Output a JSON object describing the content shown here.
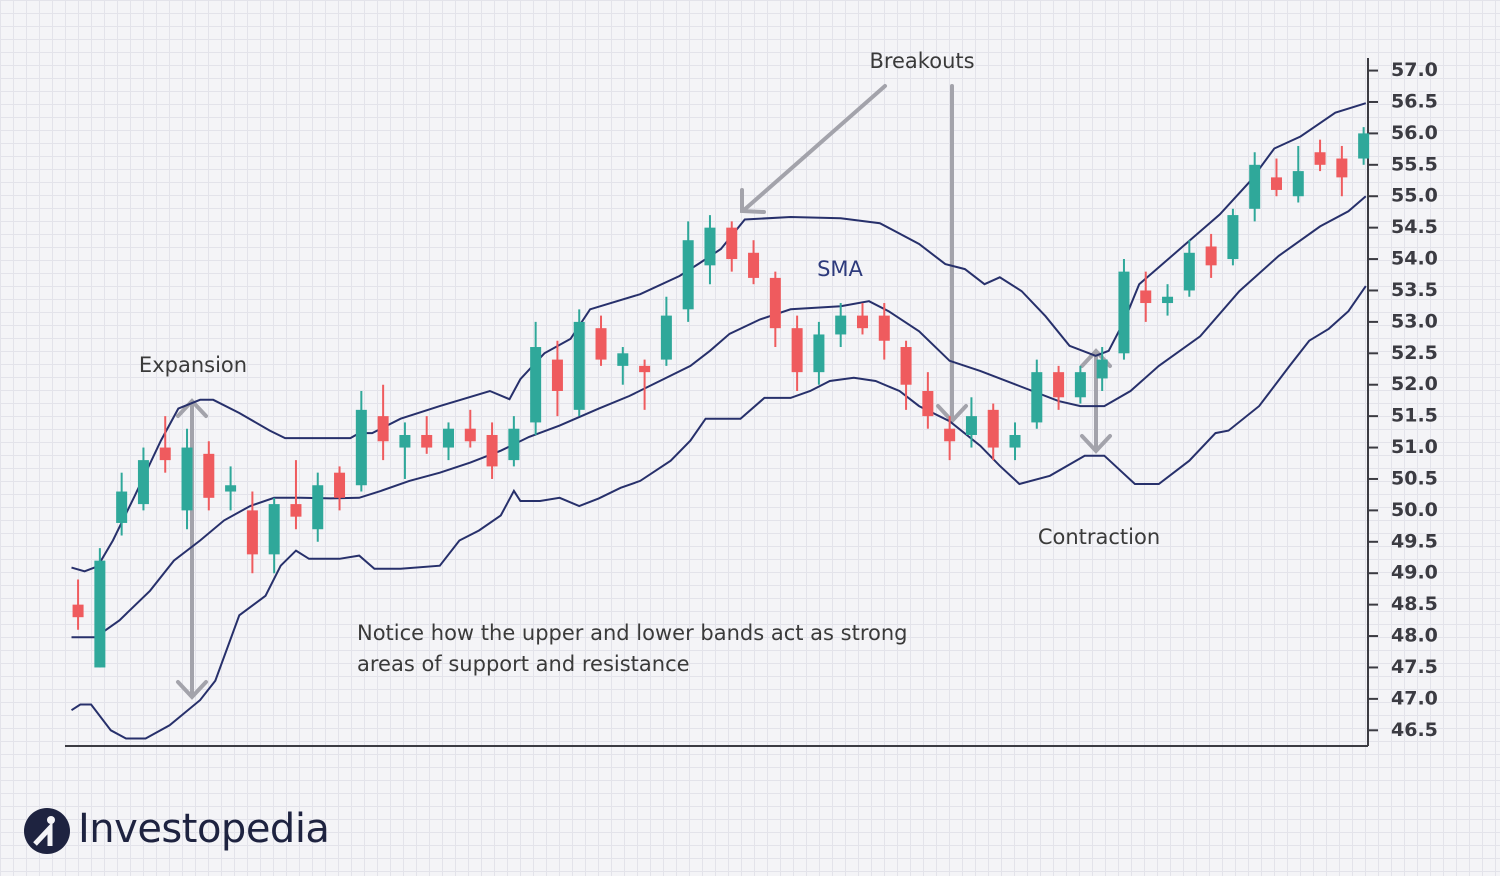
{
  "chart_data": {
    "type": "candlestick",
    "x": [
      0,
      1,
      2,
      3,
      4,
      5,
      6,
      7,
      8,
      9,
      10,
      11,
      12,
      13,
      14,
      15,
      16,
      17,
      18,
      19,
      20,
      21,
      22,
      23,
      24,
      25,
      26,
      27,
      28,
      29,
      30,
      31,
      32,
      33,
      34,
      35,
      36,
      37,
      38,
      39,
      40,
      41,
      42,
      43,
      44,
      45,
      46,
      47,
      48,
      49,
      50,
      51,
      52,
      53,
      54,
      55,
      56,
      57,
      58,
      59
    ],
    "open": [
      48.5,
      47.5,
      49.8,
      50.1,
      51.0,
      50.0,
      50.9,
      50.3,
      50.0,
      49.3,
      50.1,
      49.7,
      50.6,
      50.4,
      51.5,
      51.0,
      51.2,
      51.0,
      51.3,
      51.2,
      50.8,
      51.4,
      52.4,
      51.6,
      52.9,
      52.3,
      52.3,
      52.4,
      53.2,
      53.9,
      54.5,
      54.1,
      53.7,
      52.9,
      52.2,
      52.8,
      53.1,
      53.1,
      52.6,
      51.9,
      51.3,
      51.2,
      51.6,
      51.0,
      51.4,
      52.2,
      51.8,
      52.1,
      52.5,
      53.5,
      53.3,
      53.5,
      54.2,
      54.0,
      54.8,
      55.3,
      55.0,
      55.7,
      55.6,
      55.6
    ],
    "high": [
      48.9,
      49.4,
      50.6,
      51.0,
      51.5,
      51.3,
      51.1,
      50.7,
      50.3,
      50.2,
      50.8,
      50.6,
      50.7,
      51.9,
      52.0,
      51.4,
      51.5,
      51.4,
      51.6,
      51.4,
      51.5,
      53.0,
      52.7,
      53.2,
      53.1,
      52.6,
      52.4,
      53.4,
      54.6,
      54.7,
      54.6,
      54.3,
      53.8,
      53.1,
      53.0,
      53.3,
      53.3,
      53.3,
      52.7,
      52.2,
      51.5,
      51.8,
      51.7,
      51.4,
      52.4,
      52.3,
      52.3,
      52.6,
      54.0,
      53.8,
      53.6,
      54.3,
      54.4,
      54.8,
      55.7,
      55.6,
      55.8,
      55.9,
      55.8,
      56.1
    ],
    "low": [
      48.1,
      47.5,
      49.6,
      50.0,
      50.6,
      49.7,
      50.0,
      50.0,
      49.0,
      49.0,
      49.7,
      49.5,
      50.0,
      50.3,
      50.8,
      50.5,
      50.9,
      50.8,
      51.0,
      50.5,
      50.7,
      51.2,
      51.5,
      51.5,
      52.3,
      52.0,
      51.6,
      52.3,
      53.0,
      53.6,
      53.8,
      53.6,
      52.6,
      51.9,
      52.0,
      52.6,
      52.8,
      52.4,
      51.6,
      51.3,
      50.8,
      51.0,
      50.8,
      50.8,
      51.3,
      51.6,
      51.7,
      51.9,
      52.4,
      53.0,
      53.1,
      53.4,
      53.7,
      53.9,
      54.6,
      55.0,
      54.9,
      55.4,
      55.0,
      55.5
    ],
    "close": [
      48.3,
      49.2,
      50.3,
      50.8,
      50.8,
      51.0,
      50.2,
      50.4,
      49.3,
      50.1,
      49.9,
      50.4,
      50.2,
      51.6,
      51.1,
      51.2,
      51.0,
      51.3,
      51.1,
      50.7,
      51.3,
      52.6,
      51.9,
      53.0,
      52.4,
      52.5,
      52.2,
      53.1,
      54.3,
      54.5,
      54.0,
      53.7,
      52.9,
      52.2,
      52.8,
      53.1,
      52.9,
      52.7,
      52.0,
      51.5,
      51.1,
      51.5,
      51.0,
      51.2,
      52.2,
      51.8,
      52.2,
      52.4,
      53.8,
      53.3,
      53.4,
      54.1,
      53.9,
      54.7,
      55.5,
      55.1,
      55.4,
      55.5,
      55.3,
      56.0
    ],
    "up_color": "#2fa89a",
    "down_color": "#ef5b5e",
    "lines": [
      {
        "color": "#27306b",
        "x": [
          -0.3,
          0.3,
          0.9,
          1.6,
          2.6,
          3.8,
          4.6,
          5.6,
          6.2,
          7.4,
          8.8,
          9.5,
          12.5,
          12.9,
          13.5,
          14.8,
          16.6,
          18.9,
          19.8,
          20.3,
          21.4,
          22.6,
          23.5,
          25.8,
          27.6,
          28.5,
          29.5,
          30.6,
          32.7,
          35.0,
          36.8,
          38.6,
          39.8,
          40.7,
          41.6,
          42.3,
          43.3,
          44.4,
          45.5,
          46.7,
          47.3,
          48.0,
          48.7,
          50.6,
          52.4,
          53.8,
          54.9,
          56.1,
          57.7,
          59.1
        ],
        "values": [
          49.09,
          49.03,
          49.11,
          49.52,
          50.23,
          51.11,
          51.62,
          51.76,
          51.76,
          51.55,
          51.27,
          51.15,
          51.15,
          51.23,
          51.23,
          51.46,
          51.66,
          51.9,
          51.77,
          52.09,
          52.5,
          52.73,
          53.2,
          53.44,
          53.73,
          53.93,
          54.16,
          54.63,
          54.67,
          54.65,
          54.57,
          54.24,
          53.92,
          53.84,
          53.6,
          53.71,
          53.49,
          53.09,
          52.62,
          52.46,
          52.54,
          53.01,
          53.6,
          54.17,
          54.71,
          55.24,
          55.76,
          55.95,
          56.33,
          56.48
        ]
      },
      {
        "color": "#27306b",
        "x": [
          -0.3,
          0.8,
          1.9,
          3.3,
          4.4,
          5.6,
          6.7,
          7.9,
          9.0,
          10.2,
          11.6,
          12.9,
          13.9,
          15.2,
          16.6,
          18.0,
          19.4,
          20.7,
          22.1,
          23.9,
          25.3,
          26.7,
          28.1,
          29.0,
          29.9,
          31.3,
          32.7,
          35.0,
          36.3,
          37.2,
          38.6,
          40.0,
          41.4,
          43.2,
          45.0,
          46.0,
          47.1,
          48.3,
          49.6,
          51.5,
          53.3,
          55.1,
          57.0,
          58.3,
          59.1
        ],
        "values": [
          47.98,
          47.98,
          48.25,
          48.72,
          49.2,
          49.52,
          49.84,
          50.07,
          50.2,
          50.2,
          50.19,
          50.2,
          50.31,
          50.47,
          50.6,
          50.76,
          50.95,
          51.17,
          51.35,
          51.62,
          51.82,
          52.06,
          52.3,
          52.54,
          52.81,
          53.04,
          53.2,
          53.25,
          53.33,
          53.17,
          52.85,
          52.38,
          52.22,
          51.98,
          51.74,
          51.66,
          51.66,
          51.9,
          52.3,
          52.77,
          53.49,
          54.05,
          54.52,
          54.76,
          55.0
        ]
      },
      {
        "color": "#27306b",
        "x": [
          -0.3,
          0.1,
          0.6,
          1.5,
          2.2,
          3.1,
          4.2,
          5.6,
          6.3,
          7.4,
          8.6,
          9.3,
          10.0,
          10.6,
          12.0,
          12.9,
          13.6,
          14.8,
          16.6,
          17.5,
          18.4,
          19.4,
          20.0,
          20.3,
          21.2,
          22.1,
          23.0,
          23.9,
          24.9,
          25.8,
          27.2,
          28.1,
          28.8,
          30.4,
          31.5,
          32.7,
          33.6,
          34.5,
          35.6,
          36.6,
          37.7,
          38.6,
          40.0,
          41.4,
          42.3,
          43.2,
          44.6,
          46.2,
          47.1,
          48.5,
          49.6,
          51.0,
          52.2,
          52.8,
          54.2,
          55.6,
          56.5,
          57.4,
          58.3,
          59.1
        ],
        "values": [
          46.82,
          46.91,
          46.91,
          46.5,
          46.37,
          46.37,
          46.58,
          46.98,
          47.29,
          48.33,
          48.64,
          49.12,
          49.36,
          49.23,
          49.23,
          49.28,
          49.07,
          49.07,
          49.12,
          49.52,
          49.68,
          49.92,
          50.31,
          50.15,
          50.15,
          50.2,
          50.07,
          50.19,
          50.36,
          50.47,
          50.79,
          51.11,
          51.46,
          51.46,
          51.79,
          51.79,
          51.9,
          52.06,
          52.11,
          52.06,
          51.9,
          51.66,
          51.42,
          51.03,
          50.71,
          50.42,
          50.55,
          50.87,
          50.87,
          50.42,
          50.42,
          50.79,
          51.23,
          51.27,
          51.66,
          52.3,
          52.7,
          52.89,
          53.17,
          53.57
        ]
      }
    ],
    "xlim": [
      -0.6,
      59.2
    ],
    "ylim": [
      46.25,
      57.2
    ],
    "yticks": [
      46.5,
      {
        "value": 47,
        "label": "47.0"
      },
      47.5,
      {
        "value": 48,
        "label": "48.0"
      },
      48.5,
      {
        "value": 49,
        "label": "49.0"
      },
      49.5,
      {
        "value": 50,
        "label": "50.0"
      },
      50.5,
      {
        "value": 51,
        "label": "51.0"
      },
      51.5,
      {
        "value": 52,
        "label": "52.0"
      },
      52.5,
      {
        "value": 53,
        "label": "53.0"
      },
      53.5,
      {
        "value": 54,
        "label": "54.0"
      },
      54.5,
      {
        "value": 55,
        "label": "55.0"
      },
      55.5,
      {
        "value": 56,
        "label": "56.0"
      },
      56.5,
      {
        "value": 57,
        "label": "57.0"
      }
    ],
    "yaxis_side": "right",
    "annotations": {
      "breakouts": "Breakouts",
      "sma": "SMA",
      "expansion": "Expansion",
      "contraction": "Contraction",
      "note": "Notice how the upper and lower bands act as strong areas of support and resistance"
    }
  },
  "logo": "Investopedia"
}
